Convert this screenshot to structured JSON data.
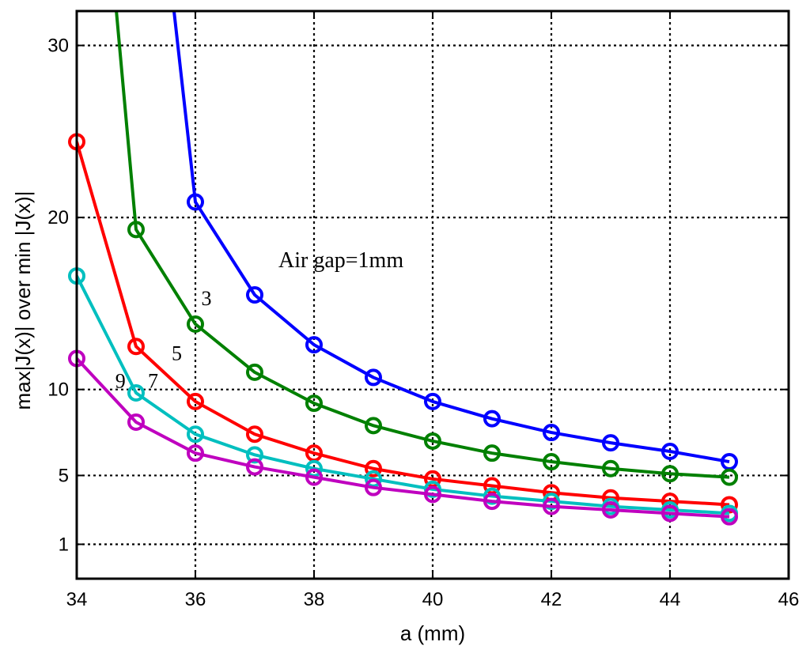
{
  "chart_data": {
    "type": "line",
    "title": "",
    "xlabel": "a (mm)",
    "ylabel": "max|J(x)| over min |J(x)|",
    "xlim": [
      34,
      46
    ],
    "ylim": [
      -1,
      32
    ],
    "xticks": [
      34,
      36,
      38,
      40,
      42,
      44,
      46
    ],
    "yticks": [
      1,
      5,
      10,
      20,
      30
    ],
    "grid": true,
    "legend": "none",
    "x": [
      34,
      35,
      36,
      37,
      38,
      39,
      40,
      41,
      42,
      43,
      44,
      45
    ],
    "series": [
      {
        "color": "#0000ff",
        "values": [
          null,
          null,
          20.9,
          15.5,
          12.6,
          10.7,
          9.3,
          8.3,
          7.5,
          6.9,
          6.4,
          5.8
        ]
      },
      {
        "color": "#008000",
        "values": [
          null,
          19.3,
          13.8,
          11.0,
          9.2,
          7.9,
          7.0,
          6.3,
          5.8,
          5.4,
          5.1,
          4.9
        ]
      },
      {
        "color": "#ff0000",
        "values": [
          24.4,
          12.5,
          9.3,
          7.4,
          6.3,
          5.4,
          4.8,
          4.4,
          4.0,
          3.7,
          3.5,
          3.3
        ]
      },
      {
        "color": "#00bfbf",
        "values": [
          16.6,
          9.8,
          7.4,
          6.2,
          5.4,
          4.8,
          4.2,
          3.8,
          3.5,
          3.2,
          3.0,
          2.8
        ]
      },
      {
        "color": "#bf00bf",
        "values": [
          11.8,
          8.1,
          6.3,
          5.5,
          4.9,
          4.3,
          3.9,
          3.5,
          3.2,
          3.0,
          2.8,
          2.6
        ]
      }
    ],
    "annotations": [
      {
        "text": "Air gap=1mm",
        "x": 37.4,
        "y": 17.1,
        "size": "large"
      },
      {
        "text": "3",
        "x": 36.1,
        "y": 14.9,
        "size": "small"
      },
      {
        "text": "5",
        "x": 35.6,
        "y": 11.7,
        "size": "small"
      },
      {
        "text": "7",
        "x": 35.2,
        "y": 10.1,
        "size": "small"
      },
      {
        "text": "9",
        "x": 34.65,
        "y": 10.1,
        "size": "small"
      }
    ]
  }
}
